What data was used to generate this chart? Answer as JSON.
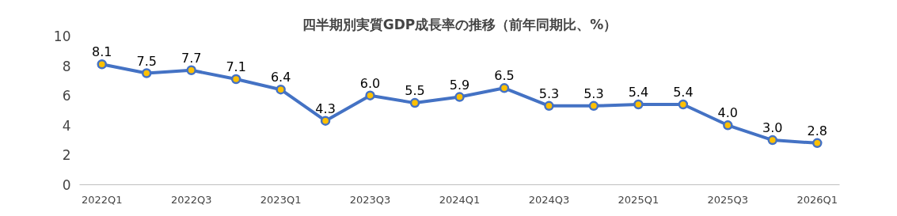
{
  "chart_data": {
    "type": "line",
    "title": "四半期別実質GDP成長率の推移（前年同期比、%）",
    "categories": [
      "2022Q1",
      null,
      "2022Q3",
      null,
      "2023Q1",
      null,
      "2023Q3",
      null,
      "2024Q1",
      null,
      "2024Q3",
      null,
      "2025Q1",
      null,
      "2025Q3",
      null,
      "2026Q1"
    ],
    "series": [
      {
        "color": "#4472c4",
        "values": [
          8.1,
          7.5,
          7.7,
          7.1,
          6.4,
          4.3,
          6.0,
          5.5,
          5.9,
          6.5,
          5.3,
          5.3,
          5.4,
          5.4,
          4.0,
          3.0,
          2.8
        ],
        "value_labels": [
          "8.1",
          "7.5",
          "7.7",
          "7.1",
          "6.4",
          "4.3",
          "6.0",
          "5.5",
          "5.9",
          "6.5",
          "5.3",
          "5.3",
          "5.4",
          "5.4",
          "4.0",
          "3.0",
          "2.8"
        ]
      }
    ],
    "ylim": [
      0,
      10
    ],
    "yticks": [
      0,
      2,
      4,
      6,
      8,
      10
    ],
    "grid": false,
    "marker": "circle",
    "line_style": "solid"
  }
}
